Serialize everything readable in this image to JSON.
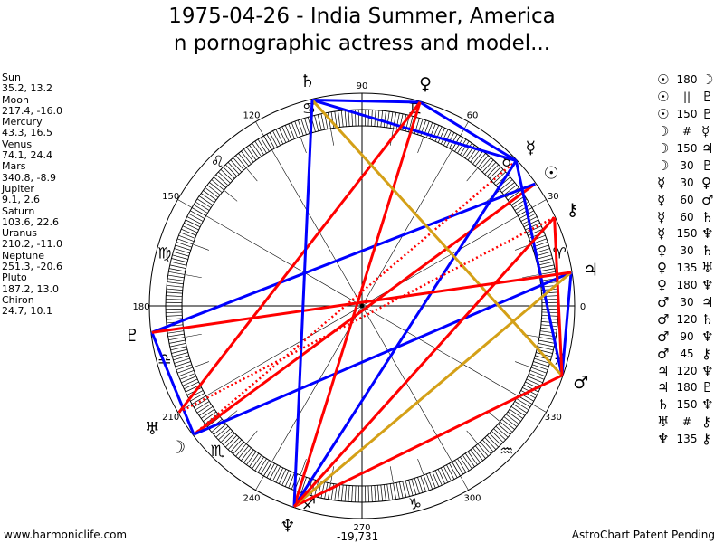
{
  "header": {
    "title_line1": "1975-04-26 - India Summer, America",
    "title_line2": "n pornographic actress and model..."
  },
  "planets": [
    {
      "name": "Sun",
      "coords": "35.2, 13.2",
      "glyph": "☉"
    },
    {
      "name": "Moon",
      "coords": "217.4, -16.0",
      "glyph": "☽"
    },
    {
      "name": "Mercury",
      "coords": "43.3, 16.5",
      "glyph": "☿"
    },
    {
      "name": "Venus",
      "coords": "74.1, 24.4",
      "glyph": "♀"
    },
    {
      "name": "Mars",
      "coords": "340.8, -8.9",
      "glyph": "♂"
    },
    {
      "name": "Jupiter",
      "coords": "9.1, 2.6",
      "glyph": "♃"
    },
    {
      "name": "Saturn",
      "coords": "103.6, 22.6",
      "glyph": "♄"
    },
    {
      "name": "Uranus",
      "coords": "210.2, -11.0",
      "glyph": "♅"
    },
    {
      "name": "Neptune",
      "coords": "251.3, -20.6",
      "glyph": "♆"
    },
    {
      "name": "Pluto",
      "coords": "187.2, 13.0",
      "glyph": "♇"
    },
    {
      "name": "Chiron",
      "coords": "24.7, 10.1",
      "glyph": "⚷"
    }
  ],
  "aspects": [
    {
      "a": "Sun",
      "type": "180",
      "b": "Moon"
    },
    {
      "a": "Sun",
      "type": "||",
      "b": "Pluto"
    },
    {
      "a": "Sun",
      "type": "150",
      "b": "Pluto"
    },
    {
      "a": "Moon",
      "type": "#",
      "b": "Mercury"
    },
    {
      "a": "Moon",
      "type": "150",
      "b": "Jupiter"
    },
    {
      "a": "Moon",
      "type": "30",
      "b": "Pluto"
    },
    {
      "a": "Mercury",
      "type": "30",
      "b": "Venus"
    },
    {
      "a": "Mercury",
      "type": "60",
      "b": "Mars"
    },
    {
      "a": "Mercury",
      "type": "60",
      "b": "Saturn"
    },
    {
      "a": "Mercury",
      "type": "150",
      "b": "Neptune"
    },
    {
      "a": "Venus",
      "type": "30",
      "b": "Saturn"
    },
    {
      "a": "Venus",
      "type": "135",
      "b": "Uranus"
    },
    {
      "a": "Venus",
      "type": "180",
      "b": "Neptune"
    },
    {
      "a": "Mars",
      "type": "30",
      "b": "Jupiter"
    },
    {
      "a": "Mars",
      "type": "120",
      "b": "Saturn"
    },
    {
      "a": "Mars",
      "type": "90",
      "b": "Neptune"
    },
    {
      "a": "Mars",
      "type": "45",
      "b": "Chiron"
    },
    {
      "a": "Jupiter",
      "type": "120",
      "b": "Neptune"
    },
    {
      "a": "Jupiter",
      "type": "180",
      "b": "Pluto"
    },
    {
      "a": "Saturn",
      "type": "150",
      "b": "Neptune"
    },
    {
      "a": "Uranus",
      "type": "#",
      "b": "Chiron"
    },
    {
      "a": "Neptune",
      "type": "135",
      "b": "Chiron"
    }
  ],
  "aspect_colors": {
    "180": "#ff0000",
    "90": "#ff0000",
    "135": "#ff0000",
    "45": "#ff0000",
    "150": "#0000ff",
    "60": "#0000ff",
    "30": "#0000ff",
    "120": "#d4a017",
    "||": "#d4a017",
    "#": "#ff0000"
  },
  "wheel": {
    "degree_labels": [
      "0",
      "30",
      "60",
      "90",
      "120",
      "150",
      "180",
      "210",
      "240",
      "270",
      "300",
      "330"
    ],
    "signs": [
      "♈",
      "♉",
      "♊",
      "♋",
      "♌",
      "♍",
      "♎",
      "♏",
      "♐",
      "♑",
      "♒",
      "♓"
    ],
    "bottom_value": "-19,731"
  },
  "footer": {
    "left": "www.harmoniclife.com",
    "right": "AstroChart Patent Pending"
  }
}
